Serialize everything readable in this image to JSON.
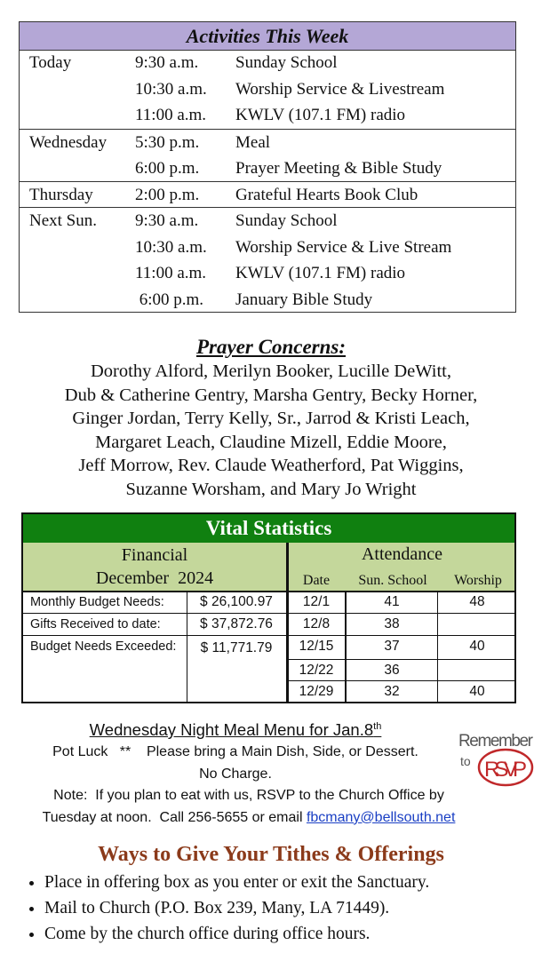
{
  "activities": {
    "title": "Activities This Week",
    "groups": [
      {
        "day": "Today",
        "items": [
          {
            "time": "9:30 a.m.",
            "event": "Sunday School"
          },
          {
            "time": "10:30 a.m.",
            "event": "Worship Service & Livestream"
          },
          {
            "time": "11:00 a.m.",
            "event": "KWLV (107.1 FM) radio"
          }
        ]
      },
      {
        "day": "Wednesday",
        "items": [
          {
            "time": "5:30 p.m.",
            "event": "Meal"
          },
          {
            "time": "6:00 p.m.",
            "event": "Prayer Meeting & Bible Study"
          }
        ]
      },
      {
        "day": "Thursday",
        "items": [
          {
            "time": "2:00 p.m.",
            "event": "Grateful Hearts Book Club"
          }
        ]
      },
      {
        "day": "Next Sun.",
        "items": [
          {
            "time": "9:30 a.m.",
            "event": "Sunday School"
          },
          {
            "time": "10:30 a.m.",
            "event": "Worship Service & Live Stream"
          },
          {
            "time": "11:00 a.m.",
            "event": "KWLV (107.1 FM) radio"
          },
          {
            "time": " 6:00 p.m.",
            "event": "January Bible Study"
          }
        ]
      }
    ]
  },
  "prayer": {
    "title": "Prayer Concerns:",
    "lines": [
      "Dorothy Alford, Merilyn Booker, Lucille DeWitt,",
      "Dub & Catherine Gentry, Marsha Gentry, Becky Horner,",
      "Ginger Jordan, Terry Kelly, Sr., Jarrod & Kristi Leach,",
      "Margaret Leach, Claudine Mizell, Eddie Moore,",
      "Jeff Morrow, Rev. Claude Weatherford, Pat Wiggins,",
      "Suzanne Worsham, and Mary Jo Wright"
    ]
  },
  "vital": {
    "title": "Vital Statistics",
    "financial_title": "Financial",
    "financial_period": "December  2024",
    "financial": [
      {
        "label": "Monthly Budget Needs:",
        "value": "$ 26,100.97"
      },
      {
        "label": "Gifts Received to date:",
        "value": "$ 37,872.76"
      },
      {
        "label": "Budget Needs Exceeded:",
        "value": "$ 11,771.79"
      }
    ],
    "attendance_title": "Attendance",
    "attendance_headers": [
      "Date",
      "Sun. School",
      "Worship"
    ],
    "attendance": [
      {
        "date": "12/1",
        "sunday_school": "41",
        "worship": "48"
      },
      {
        "date": "12/8",
        "sunday_school": "38",
        "worship": ""
      },
      {
        "date": "12/15",
        "sunday_school": "37",
        "worship": "40"
      },
      {
        "date": "12/22",
        "sunday_school": "36",
        "worship": ""
      },
      {
        "date": "12/29",
        "sunday_school": "32",
        "worship": "40"
      }
    ]
  },
  "menu": {
    "title": "Wednesday Night Meal Menu for Jan.8",
    "title_sup": "th",
    "line1": "Pot Luck   **    Please bring a Main Dish, Side, or Dessert.",
    "line2": "No Charge.",
    "note_a": "Note:  If you plan to eat with us, ",
    "note_b": "RSVP to the Church Office by",
    "note_c": "Tuesday at noon.",
    "note_d": "  Call 256-5655 or email ",
    "email": "fbcmany@bellsouth.net",
    "logo_text": "Remember to RSVP"
  },
  "give": {
    "title": "Ways to Give Your Tithes & Offerings",
    "items": [
      "Place in offering box as you enter or exit the Sanctuary.",
      "Mail to Church (P.O. Box 239, Many, LA  71449).",
      "Come by the church office during office hours."
    ]
  }
}
